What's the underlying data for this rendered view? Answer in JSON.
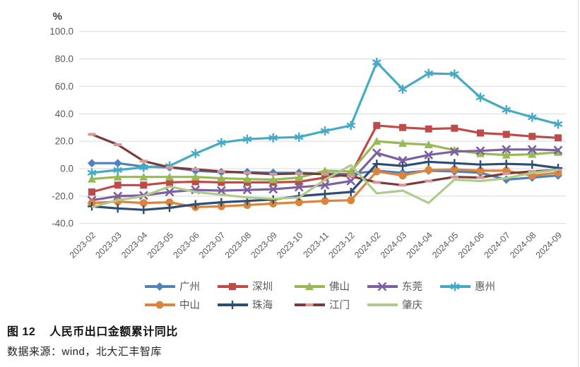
{
  "figure": {
    "caption_label": "图 12",
    "caption_title": "人民币出口金额累计同比",
    "source": "数据来源：wind，北大汇丰智库"
  },
  "chart_data": {
    "type": "line",
    "title": "人民币出口金额累计同比",
    "unit_label": "%",
    "xlabel": "",
    "ylabel": "%",
    "ylim": [
      -40,
      100
    ],
    "ytick_values": [
      100,
      80,
      60,
      40,
      20,
      0,
      -20,
      -40
    ],
    "ytick_labels": [
      "100.0",
      "80.0",
      "60.0",
      "40.0",
      "20.0",
      "0.0",
      "-20.0",
      "-40.0"
    ],
    "grid": true,
    "legend_position": "bottom",
    "categories": [
      "2023-02",
      "2023-03",
      "2023-04",
      "2023-05",
      "2023-06",
      "2023-07",
      "2023-08",
      "2023-09",
      "2023-10",
      "2023-11",
      "2023-12",
      "2024-02",
      "2024-03",
      "2024-04",
      "2024-05",
      "2024-06",
      "2024-07",
      "2024-08",
      "2024-09"
    ],
    "series": [
      {
        "id": "guangzhou",
        "name": "广州",
        "marker": "diamond",
        "color": "#4F81BD",
        "values": [
          4,
          4,
          1.5,
          1,
          -1.5,
          -2.5,
          -2.5,
          -3,
          -3,
          -3.5,
          -4,
          -1.5,
          -3,
          -1.5,
          -2,
          -3,
          -8,
          -6.5,
          -5
        ]
      },
      {
        "id": "shenzhen",
        "name": "深圳",
        "marker": "square",
        "color": "#BE4B48",
        "values": [
          -17,
          -12,
          -12,
          -10,
          -9.5,
          -10,
          -10,
          -10,
          -9.5,
          -6.5,
          -4,
          31.5,
          30,
          29,
          29.5,
          26,
          25,
          23.5,
          22.5
        ]
      },
      {
        "id": "foshan",
        "name": "佛山",
        "marker": "triangle",
        "color": "#98B954",
        "values": [
          -7.5,
          -6,
          -6,
          -6,
          -6,
          -7,
          -7.5,
          -8,
          -6.5,
          -1.5,
          -2,
          20,
          18.5,
          17.5,
          13.5,
          11,
          10,
          10.5,
          12
        ]
      },
      {
        "id": "dongguan",
        "name": "东莞",
        "marker": "x",
        "color": "#7D60A0",
        "values": [
          -23,
          -20,
          -19.5,
          -17,
          -15.5,
          -16,
          -15.5,
          -15,
          -13.5,
          -12,
          -9,
          11.5,
          6,
          10,
          12.5,
          13,
          14,
          14,
          13.5
        ]
      },
      {
        "id": "huizhou",
        "name": "惠州",
        "marker": "asterisk",
        "color": "#46AAC5",
        "values": [
          -3,
          -1,
          1,
          2,
          11,
          19,
          21.5,
          22.5,
          23,
          27.5,
          31.5,
          77.5,
          58,
          69.5,
          69,
          52,
          43,
          37.5,
          32.5
        ]
      },
      {
        "id": "zhongshan",
        "name": "中山",
        "marker": "circle",
        "color": "#DB843D",
        "values": [
          -25,
          -24,
          -25,
          -24.5,
          -28,
          -27.5,
          -26.5,
          -25.5,
          -24.5,
          -23.5,
          -23,
          -2,
          -5,
          -1,
          -0.5,
          -1.5,
          -1.5,
          -5,
          -3
        ]
      },
      {
        "id": "zhuhai",
        "name": "珠海",
        "marker": "plus",
        "color": "#2C4D75",
        "values": [
          -27.5,
          -29,
          -30,
          -28.5,
          -26,
          -24.5,
          -23.5,
          -22.5,
          -20,
          -18.5,
          -17,
          3.5,
          2,
          5,
          4,
          3,
          3.5,
          3,
          0.5
        ]
      },
      {
        "id": "jiangmen",
        "name": "江门",
        "marker": "dash",
        "color": "#7B3C39",
        "marker_color": "#D99694",
        "values": [
          25,
          17.5,
          5.5,
          1,
          -0.5,
          -2,
          -3,
          -4,
          -3.5,
          -4,
          -5.5,
          -10,
          -12,
          -9,
          -6,
          -6.5,
          -3.5,
          -2,
          -1
        ]
      },
      {
        "id": "zhaoqing",
        "name": "肇庆",
        "marker": "none",
        "color": "#AFCB8C",
        "values": [
          -28,
          -23,
          -20,
          -13,
          -17,
          -19,
          -21,
          -22,
          -21,
          -8,
          2.5,
          -18,
          -16,
          -25,
          -8,
          -9,
          -7,
          -3,
          -1
        ]
      }
    ]
  }
}
